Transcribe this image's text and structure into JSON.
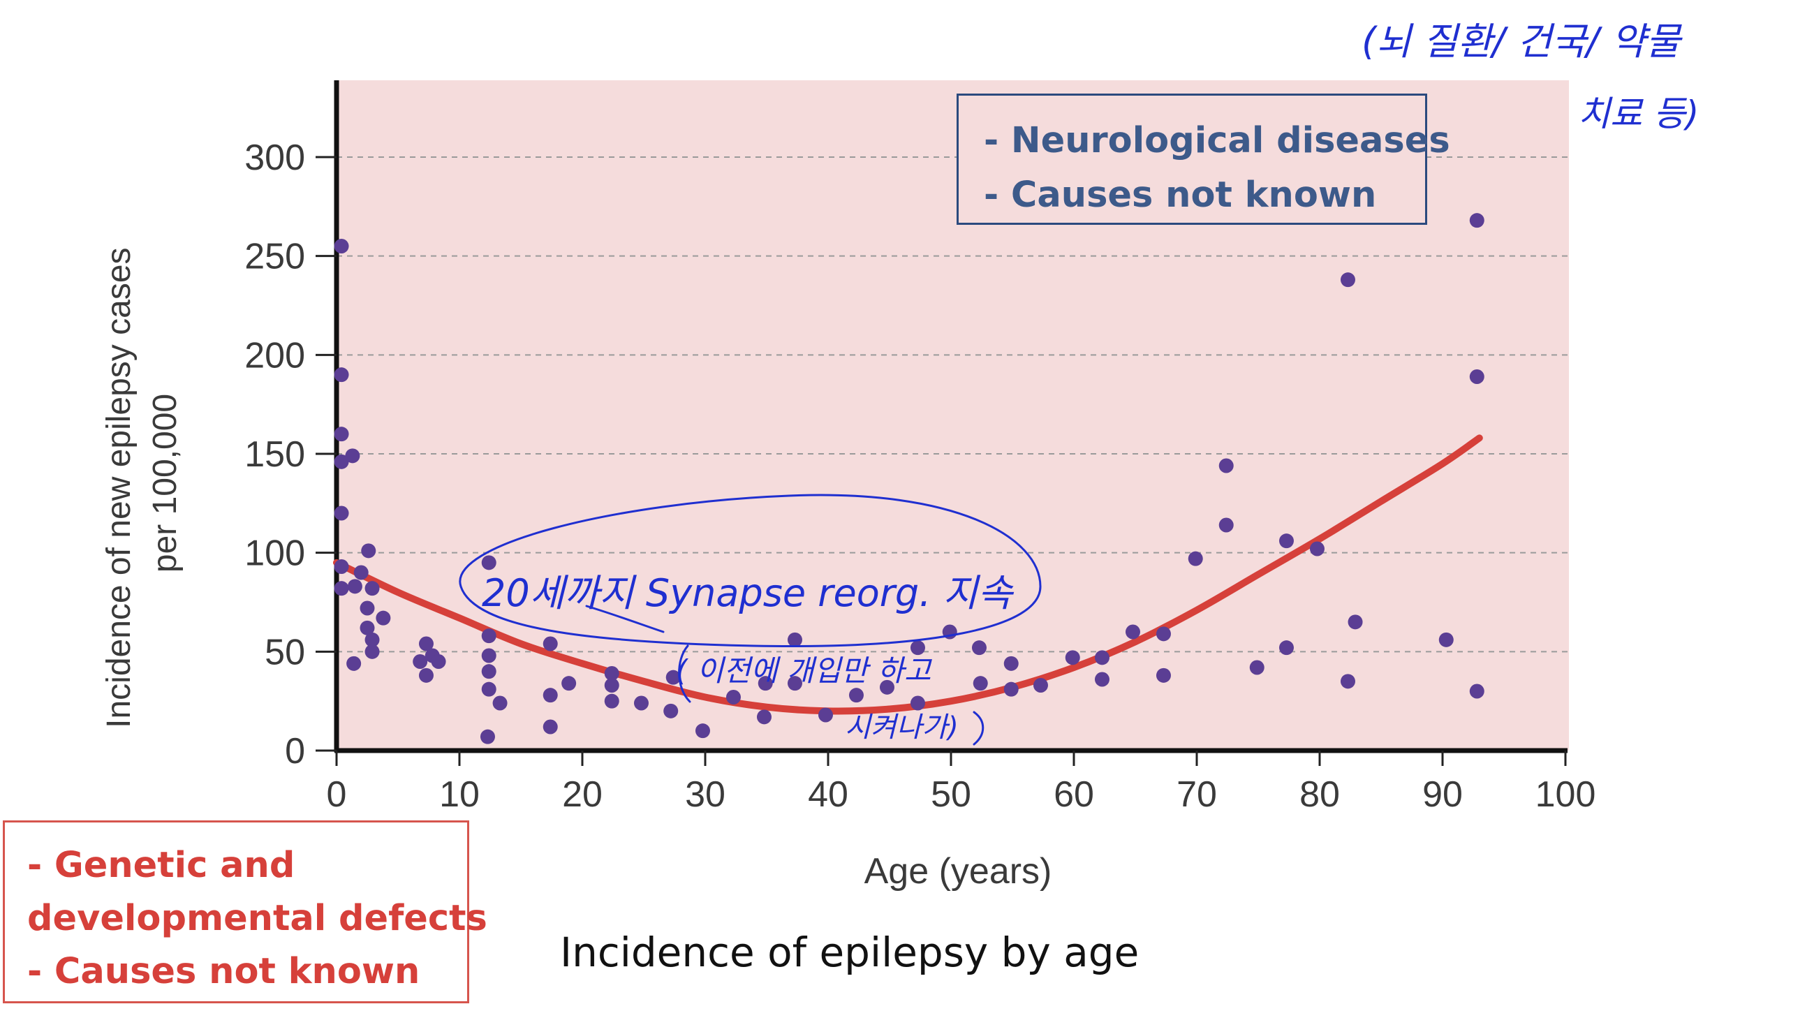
{
  "chart_data": {
    "type": "scatter",
    "xlabel": "Age (years)",
    "ylabel": "Incidence of new epilepsy cases per 100,000",
    "xlim": [
      0,
      100
    ],
    "ylim": [
      0,
      300
    ],
    "x_ticks": [
      "0",
      "10",
      "20",
      "30",
      "40",
      "50",
      "60",
      "70",
      "80",
      "90",
      "100"
    ],
    "y_ticks": [
      "0",
      "50",
      "100",
      "150",
      "200",
      "250",
      "300"
    ],
    "grid": "horizontal dashed",
    "plot_background": "#f5dcdc",
    "point_color": "#5b3e94",
    "curve_color": "#d6403a",
    "points": [
      {
        "x": 0.4,
        "y": 255
      },
      {
        "x": 0.4,
        "y": 190
      },
      {
        "x": 0.4,
        "y": 160
      },
      {
        "x": 0.4,
        "y": 146
      },
      {
        "x": 1.3,
        "y": 149
      },
      {
        "x": 0.4,
        "y": 120
      },
      {
        "x": 0.4,
        "y": 93
      },
      {
        "x": 0.4,
        "y": 82
      },
      {
        "x": 1.5,
        "y": 83
      },
      {
        "x": 1.4,
        "y": 44
      },
      {
        "x": 2.0,
        "y": 90
      },
      {
        "x": 2.5,
        "y": 72
      },
      {
        "x": 2.5,
        "y": 62
      },
      {
        "x": 2.6,
        "y": 101
      },
      {
        "x": 2.9,
        "y": 82
      },
      {
        "x": 2.9,
        "y": 56
      },
      {
        "x": 2.9,
        "y": 50
      },
      {
        "x": 3.8,
        "y": 67
      },
      {
        "x": 6.8,
        "y": 45
      },
      {
        "x": 7.3,
        "y": 54
      },
      {
        "x": 7.3,
        "y": 38
      },
      {
        "x": 7.8,
        "y": 48
      },
      {
        "x": 8.3,
        "y": 45
      },
      {
        "x": 12.4,
        "y": 95
      },
      {
        "x": 12.4,
        "y": 58
      },
      {
        "x": 12.4,
        "y": 48
      },
      {
        "x": 12.4,
        "y": 40
      },
      {
        "x": 12.4,
        "y": 31
      },
      {
        "x": 12.3,
        "y": 7
      },
      {
        "x": 13.3,
        "y": 24
      },
      {
        "x": 17.4,
        "y": 54
      },
      {
        "x": 17.4,
        "y": 28
      },
      {
        "x": 17.4,
        "y": 12
      },
      {
        "x": 18.9,
        "y": 34
      },
      {
        "x": 22.4,
        "y": 39
      },
      {
        "x": 22.4,
        "y": 33
      },
      {
        "x": 22.4,
        "y": 25
      },
      {
        "x": 24.8,
        "y": 24
      },
      {
        "x": 27.2,
        "y": 20
      },
      {
        "x": 27.4,
        "y": 37
      },
      {
        "x": 29.8,
        "y": 10
      },
      {
        "x": 32.3,
        "y": 27
      },
      {
        "x": 34.8,
        "y": 17
      },
      {
        "x": 34.9,
        "y": 34
      },
      {
        "x": 37.3,
        "y": 56
      },
      {
        "x": 37.3,
        "y": 34
      },
      {
        "x": 39.8,
        "y": 18
      },
      {
        "x": 42.3,
        "y": 28
      },
      {
        "x": 44.8,
        "y": 32
      },
      {
        "x": 47.3,
        "y": 52
      },
      {
        "x": 47.3,
        "y": 24
      },
      {
        "x": 49.9,
        "y": 60
      },
      {
        "x": 52.3,
        "y": 52
      },
      {
        "x": 52.4,
        "y": 34
      },
      {
        "x": 54.9,
        "y": 44
      },
      {
        "x": 54.9,
        "y": 31
      },
      {
        "x": 57.3,
        "y": 33
      },
      {
        "x": 59.9,
        "y": 47
      },
      {
        "x": 62.3,
        "y": 47
      },
      {
        "x": 62.3,
        "y": 36
      },
      {
        "x": 64.8,
        "y": 60
      },
      {
        "x": 67.3,
        "y": 59
      },
      {
        "x": 67.3,
        "y": 38
      },
      {
        "x": 69.9,
        "y": 97
      },
      {
        "x": 72.4,
        "y": 144
      },
      {
        "x": 72.4,
        "y": 114
      },
      {
        "x": 74.9,
        "y": 42
      },
      {
        "x": 77.3,
        "y": 106
      },
      {
        "x": 77.3,
        "y": 52
      },
      {
        "x": 79.8,
        "y": 102
      },
      {
        "x": 82.3,
        "y": 238
      },
      {
        "x": 82.3,
        "y": 35
      },
      {
        "x": 82.9,
        "y": 65
      },
      {
        "x": 90.3,
        "y": 56
      },
      {
        "x": 92.8,
        "y": 268
      },
      {
        "x": 92.8,
        "y": 189
      },
      {
        "x": 92.8,
        "y": 30
      }
    ],
    "trend_curve": {
      "x": [
        0,
        5,
        10,
        15,
        20,
        25,
        30,
        35,
        40,
        45,
        50,
        55,
        60,
        65,
        70,
        75,
        80,
        85,
        90,
        93
      ],
      "y": [
        95,
        80,
        67,
        54,
        44,
        35,
        27,
        22,
        20,
        21,
        25,
        32,
        42,
        55,
        71,
        89,
        107,
        126,
        145,
        158
      ]
    }
  },
  "annotation_right": {
    "line1": "- Neurological diseases",
    "line2": "- Causes not known"
  },
  "annotation_left": {
    "line1": "- Genetic and",
    "line2": "developmental defects",
    "line3": "- Causes not known"
  },
  "caption": "Incidence of epilepsy by age",
  "handwriting": {
    "color": "#1f2fd0",
    "note_synapse": "20세까지 Synapse reorg. 지속",
    "note_before_adjust": "( 이전에 개입만 하고",
    "note_after_adjust": "시켜나가)",
    "note_top_right_line1": "(뇌 질환/ 건국/ 약물",
    "note_top_right_line2": "치료 등)"
  }
}
